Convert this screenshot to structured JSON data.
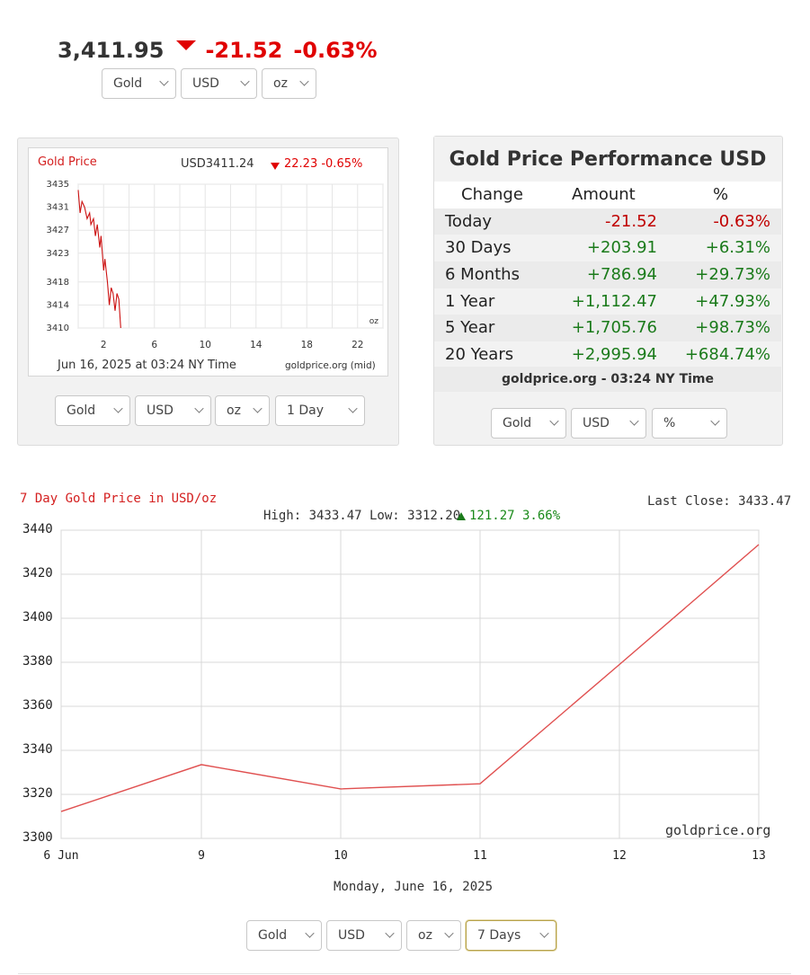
{
  "header": {
    "price": "3,411.95",
    "change": "-21.52",
    "change_pct": "-0.63%",
    "selects": [
      "Gold",
      "USD",
      "oz"
    ]
  },
  "small_chart": {
    "title": "Gold Price",
    "quote": "USD3411.24",
    "quote_change": "22.23 -0.65%",
    "unit": "oz",
    "timestamp": "Jun 16, 2025 at 03:24 NY Time",
    "source": "goldprice.org (mid)",
    "selects": [
      "Gold",
      "USD",
      "oz",
      "1 Day"
    ]
  },
  "performance": {
    "title": "Gold Price Performance USD",
    "headers": [
      "Change",
      "Amount",
      "%"
    ],
    "rows": [
      {
        "label": "Today",
        "amount": "-21.52",
        "pct": "-0.63%",
        "dir": "neg"
      },
      {
        "label": "30 Days",
        "amount": "+203.91",
        "pct": "+6.31%",
        "dir": "pos"
      },
      {
        "label": "6 Months",
        "amount": "+786.94",
        "pct": "+29.73%",
        "dir": "pos"
      },
      {
        "label": "1 Year",
        "amount": "+1,112.47",
        "pct": "+47.93%",
        "dir": "pos"
      },
      {
        "label": "5 Year",
        "amount": "+1,705.76",
        "pct": "+98.73%",
        "dir": "pos"
      },
      {
        "label": "20 Years",
        "amount": "+2,995.94",
        "pct": "+684.74%",
        "dir": "pos"
      }
    ],
    "source": "goldprice.org - 03:24 NY Time",
    "selects": [
      "Gold",
      "USD",
      "%"
    ]
  },
  "big_chart": {
    "title": "7 Day Gold Price in USD/oz",
    "last_close": "Last Close: 3433.47",
    "stats_label": "High: 3433.47 Low: 3312.20",
    "stats_change": "121.27 3.66%",
    "watermark": "goldprice.org",
    "date_label": "Monday, June 16, 2025",
    "selects": [
      "Gold",
      "USD",
      "oz",
      "7 Days"
    ]
  },
  "colors": {
    "negative": "#e00000",
    "positive": "#1a7a1a",
    "line": "#e05050"
  },
  "chart_data": [
    {
      "type": "line",
      "title": "Gold Price",
      "x_ticks": [
        "2",
        "6",
        "10",
        "14",
        "18",
        "22"
      ],
      "y_ticks": [
        3435,
        3431,
        3427,
        3423,
        3418,
        3414,
        3410
      ],
      "ylim": [
        3410,
        3435
      ],
      "xlim": [
        0,
        24
      ],
      "series": [
        {
          "values": [
            [
              0.0,
              3434
            ],
            [
              0.15,
              3430
            ],
            [
              0.3,
              3432
            ],
            [
              0.5,
              3431
            ],
            [
              0.7,
              3429
            ],
            [
              0.9,
              3430
            ],
            [
              1.0,
              3428
            ],
            [
              1.2,
              3429
            ],
            [
              1.35,
              3426
            ],
            [
              1.5,
              3428
            ],
            [
              1.7,
              3424
            ],
            [
              1.8,
              3426
            ],
            [
              2.0,
              3420
            ],
            [
              2.1,
              3422
            ],
            [
              2.3,
              3418
            ],
            [
              2.45,
              3414
            ],
            [
              2.6,
              3417
            ],
            [
              2.75,
              3416
            ],
            [
              2.9,
              3413
            ],
            [
              3.05,
              3416
            ],
            [
              3.2,
              3415
            ],
            [
              3.35,
              3410
            ]
          ]
        }
      ]
    },
    {
      "type": "line",
      "title": "7 Day Gold Price in USD/oz",
      "categories": [
        "6 Jun",
        "9",
        "10",
        "11",
        "12",
        "13"
      ],
      "values": [
        3312.2,
        3333.5,
        3322.5,
        3324.8,
        3379.0,
        3433.47
      ],
      "ylim": [
        3300,
        3440
      ],
      "y_ticks": [
        3440,
        3420,
        3400,
        3380,
        3360,
        3340,
        3320,
        3300
      ],
      "grid": true
    }
  ]
}
